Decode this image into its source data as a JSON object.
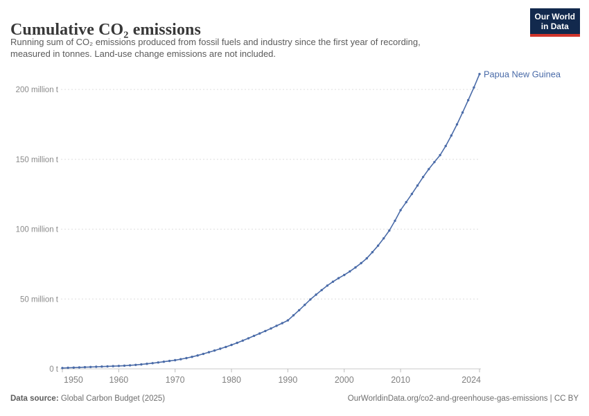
{
  "header": {
    "title": "Cumulative CO₂ emissions",
    "subtitle_line1": "Running sum of CO₂ emissions produced from fossil fuels and industry since the first year of recording,",
    "subtitle_line2": "measured in tonnes. Land-use change emissions are not included."
  },
  "logo": {
    "line1": "Our World",
    "line2": "in Data",
    "bg_color": "#12294d",
    "bar_color": "#d1352b"
  },
  "chart_data": {
    "type": "line",
    "title": "Cumulative CO₂ emissions",
    "unit": "million t",
    "xlim": [
      1950,
      2024
    ],
    "ylim": [
      0,
      215
    ],
    "grid": "horizontal dashed",
    "legend_position": "end-of-line label",
    "x_ticks": [
      1950,
      1960,
      1970,
      1980,
      1990,
      2000,
      2010,
      2024
    ],
    "y_ticks": [
      0,
      50,
      100,
      150,
      200
    ],
    "y_tick_labels": [
      "0 t",
      "50 million t",
      "100 million t",
      "150 million t",
      "200 million t"
    ],
    "series": [
      {
        "name": "Papua New Guinea",
        "color": "#4a6ba8",
        "x": [
          1950,
          1951,
          1952,
          1953,
          1954,
          1955,
          1956,
          1957,
          1958,
          1959,
          1960,
          1961,
          1962,
          1963,
          1964,
          1965,
          1966,
          1967,
          1968,
          1969,
          1970,
          1971,
          1972,
          1973,
          1974,
          1975,
          1976,
          1977,
          1978,
          1979,
          1980,
          1981,
          1982,
          1983,
          1984,
          1985,
          1986,
          1987,
          1988,
          1989,
          1990,
          1991,
          1992,
          1993,
          1994,
          1995,
          1996,
          1997,
          1998,
          1999,
          2000,
          2001,
          2002,
          2003,
          2004,
          2005,
          2006,
          2007,
          2008,
          2009,
          2010,
          2011,
          2012,
          2013,
          2014,
          2015,
          2016,
          2017,
          2018,
          2019,
          2020,
          2021,
          2022,
          2023,
          2024
        ],
        "values": [
          0.6,
          0.75,
          0.9,
          1.05,
          1.2,
          1.35,
          1.5,
          1.65,
          1.8,
          1.95,
          2.1,
          2.3,
          2.55,
          2.85,
          3.2,
          3.6,
          4.05,
          4.55,
          5.1,
          5.65,
          6.2,
          6.9,
          7.7,
          8.6,
          9.6,
          10.7,
          11.9,
          13.1,
          14.4,
          15.7,
          17.1,
          18.6,
          20.2,
          21.9,
          23.6,
          25.3,
          27.1,
          28.9,
          30.8,
          32.7,
          34.7,
          38.3,
          42.0,
          45.8,
          49.7,
          53.1,
          56.4,
          59.6,
          62.4,
          64.9,
          67.2,
          69.8,
          72.6,
          75.7,
          79.1,
          83.5,
          88.2,
          93.4,
          99.0,
          106.0,
          113.6,
          119.3,
          125.2,
          131.2,
          137.3,
          143.0,
          148.0,
          153.0,
          159.5,
          167.0,
          175.0,
          183.5,
          192.3,
          201.4,
          211.0
        ]
      }
    ]
  },
  "footer": {
    "source_label": "Data source:",
    "source_value": " Global Carbon Budget (2025)",
    "citation": "OurWorldinData.org/co2-and-greenhouse-gas-emissions | CC BY"
  }
}
